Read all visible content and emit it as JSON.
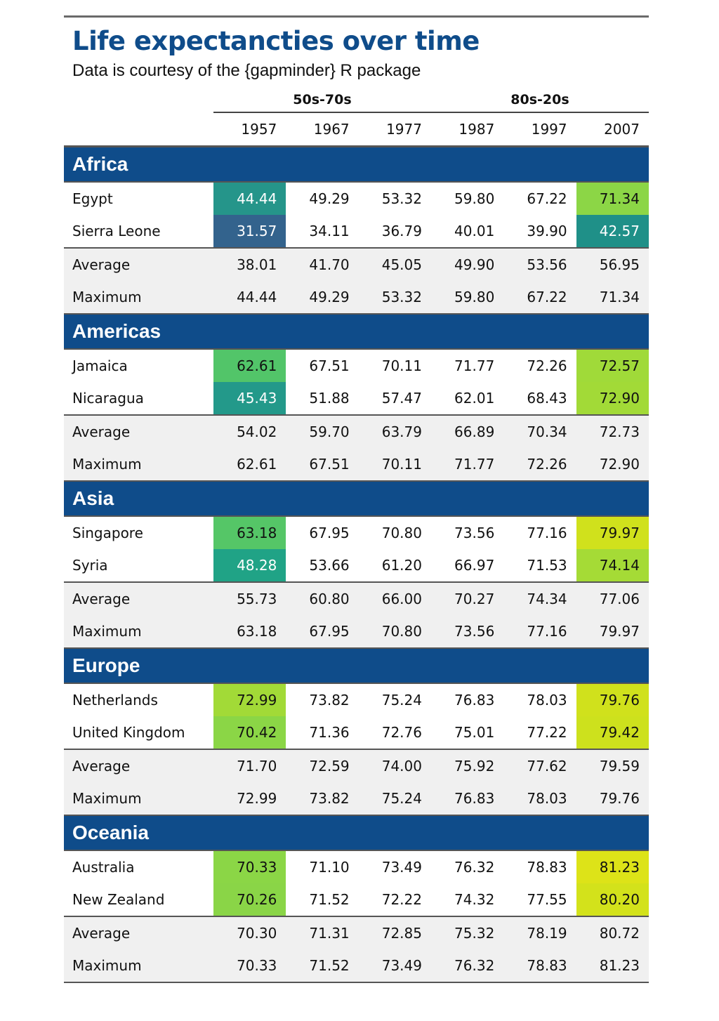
{
  "title": "Life expectancties over time",
  "subtitle": "Data is courtesy of the {gapminder} R package",
  "spanners": [
    "50s-70s",
    "80s-20s"
  ],
  "years": [
    "1957",
    "1967",
    "1977",
    "1987",
    "1997",
    "2007"
  ],
  "colors": {
    "header_blue": "#0f4c8a",
    "summary_bg": "#f0f0f0",
    "palette": "viridis"
  },
  "groups": [
    {
      "name": "Africa",
      "rows": [
        {
          "country": "Egypt",
          "values": [
            "44.44",
            "49.29",
            "53.32",
            "59.80",
            "67.22",
            "71.34"
          ],
          "first_bg": "#25958a",
          "last_bg": "#8cd646"
        },
        {
          "country": "Sierra Leone",
          "values": [
            "31.57",
            "34.11",
            "36.79",
            "40.01",
            "39.90",
            "42.57"
          ],
          "first_bg": "#33638d",
          "last_bg": "#1f9088"
        }
      ],
      "average": [
        "38.01",
        "41.70",
        "45.05",
        "49.90",
        "53.56",
        "56.95"
      ],
      "maximum": [
        "44.44",
        "49.29",
        "53.32",
        "59.80",
        "67.22",
        "71.34"
      ]
    },
    {
      "name": "Americas",
      "rows": [
        {
          "country": "Jamaica",
          "values": [
            "62.61",
            "67.51",
            "70.11",
            "71.77",
            "72.26",
            "72.57"
          ],
          "first_bg": "#52c569",
          "last_bg": "#a0da39"
        },
        {
          "country": "Nicaragua",
          "values": [
            "45.43",
            "51.88",
            "57.47",
            "62.01",
            "68.43",
            "72.90"
          ],
          "first_bg": "#23998a",
          "last_bg": "#a2da37"
        }
      ],
      "average": [
        "54.02",
        "59.70",
        "63.79",
        "66.89",
        "70.34",
        "72.73"
      ],
      "maximum": [
        "62.61",
        "67.51",
        "70.11",
        "71.77",
        "72.26",
        "72.90"
      ]
    },
    {
      "name": "Asia",
      "rows": [
        {
          "country": "Singapore",
          "values": [
            "63.18",
            "67.95",
            "70.80",
            "73.56",
            "77.16",
            "79.97"
          ],
          "first_bg": "#55c667",
          "last_bg": "#d0e11c"
        },
        {
          "country": "Syria",
          "values": [
            "48.28",
            "53.66",
            "61.20",
            "66.97",
            "71.53",
            "74.14"
          ],
          "first_bg": "#20a386",
          "last_bg": "#a5db36"
        }
      ],
      "average": [
        "55.73",
        "60.80",
        "66.00",
        "70.27",
        "74.34",
        "77.06"
      ],
      "maximum": [
        "63.18",
        "67.95",
        "70.80",
        "73.56",
        "77.16",
        "79.97"
      ]
    },
    {
      "name": "Europe",
      "rows": [
        {
          "country": "Netherlands",
          "values": [
            "72.99",
            "73.82",
            "75.24",
            "76.83",
            "78.03",
            "79.76"
          ],
          "first_bg": "#a2da37",
          "last_bg": "#d0e11c"
        },
        {
          "country": "United Kingdom",
          "values": [
            "70.42",
            "71.36",
            "72.76",
            "75.01",
            "77.22",
            "79.42"
          ],
          "first_bg": "#8bd646",
          "last_bg": "#cde11d"
        }
      ],
      "average": [
        "71.70",
        "72.59",
        "74.00",
        "75.92",
        "77.62",
        "79.59"
      ],
      "maximum": [
        "72.99",
        "73.82",
        "75.24",
        "76.83",
        "78.03",
        "79.76"
      ]
    },
    {
      "name": "Oceania",
      "rows": [
        {
          "country": "Australia",
          "values": [
            "70.33",
            "71.10",
            "73.49",
            "76.32",
            "78.83",
            "81.23"
          ],
          "first_bg": "#8bd646",
          "last_bg": "#dde318"
        },
        {
          "country": "New Zealand",
          "values": [
            "70.26",
            "71.52",
            "72.22",
            "74.32",
            "77.55",
            "80.20"
          ],
          "first_bg": "#8ad547",
          "last_bg": "#d3e21b"
        }
      ],
      "average": [
        "70.30",
        "71.31",
        "72.85",
        "75.32",
        "78.19",
        "80.72"
      ],
      "maximum": [
        "70.33",
        "71.52",
        "73.49",
        "76.32",
        "78.83",
        "81.23"
      ]
    }
  ],
  "summary_labels": {
    "average": "Average",
    "maximum": "Maximum"
  }
}
